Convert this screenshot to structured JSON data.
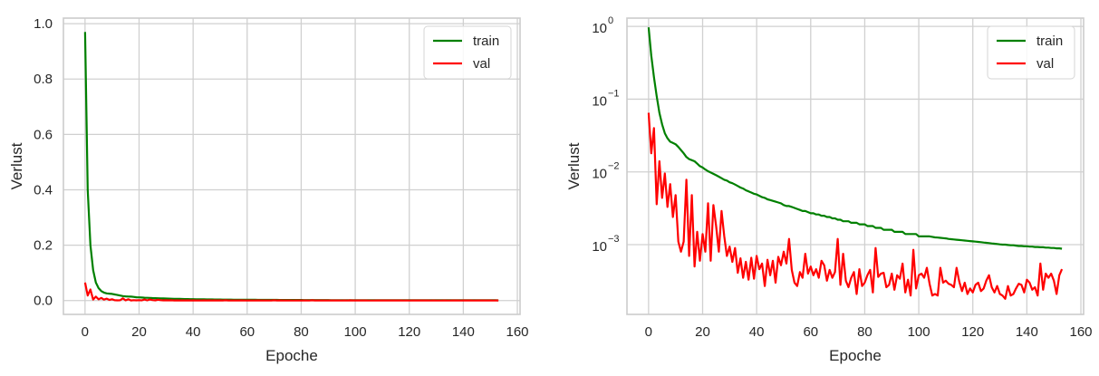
{
  "figure": {
    "panels": [
      "linear",
      "log"
    ]
  },
  "colors": {
    "train": "#008000",
    "val": "#ff0000",
    "grid": "#d0d0d0",
    "frame": "#cccccc",
    "text": "#262626"
  },
  "chart_data": [
    {
      "type": "line",
      "title": "",
      "xlabel": "Epoche",
      "ylabel": "Verlust",
      "yscale": "linear",
      "xlim": [
        -8,
        161
      ],
      "ylim": [
        -0.05,
        1.02
      ],
      "xticks": [
        0,
        20,
        40,
        60,
        80,
        100,
        120,
        140,
        160
      ],
      "xtick_labels": [
        "0",
        "20",
        "40",
        "60",
        "80",
        "100",
        "120",
        "140",
        "160"
      ],
      "yticks": [
        0.0,
        0.2,
        0.4,
        0.6,
        0.8,
        1.0
      ],
      "ytick_labels": [
        "0.0",
        "0.2",
        "0.4",
        "0.6",
        "0.8",
        "1.0"
      ],
      "grid": true,
      "legend": {
        "position": "upper right",
        "entries": [
          "train",
          "val"
        ]
      },
      "series": [
        {
          "name": "train",
          "color": "#008000",
          "ref": "train"
        },
        {
          "name": "val",
          "color": "#ff0000",
          "ref": "val"
        }
      ]
    },
    {
      "type": "line",
      "title": "",
      "xlabel": "Epoche",
      "ylabel": "Verlust",
      "yscale": "log",
      "xlim": [
        -8,
        161
      ],
      "ylim": [
        0.00011,
        1.3
      ],
      "xticks": [
        0,
        20,
        40,
        60,
        80,
        100,
        120,
        140,
        160
      ],
      "xtick_labels": [
        "0",
        "20",
        "40",
        "60",
        "80",
        "100",
        "120",
        "140",
        "160"
      ],
      "yticks": [
        1,
        0.1,
        0.01,
        0.001
      ],
      "ytick_labels": [
        "10",
        "10",
        "10",
        "10"
      ],
      "ytick_exponents": [
        "0",
        "−1",
        "−2",
        "−3"
      ],
      "grid": true,
      "legend": {
        "position": "upper right",
        "entries": [
          "train",
          "val"
        ]
      },
      "series": [
        {
          "name": "train",
          "color": "#008000",
          "ref": "train"
        },
        {
          "name": "val",
          "color": "#ff0000",
          "ref": "val"
        }
      ]
    }
  ],
  "series_values": {
    "epochs": [
      0,
      1,
      2,
      3,
      4,
      5,
      6,
      7,
      8,
      9,
      10,
      11,
      12,
      13,
      14,
      15,
      16,
      17,
      18,
      19,
      20,
      21,
      22,
      23,
      24,
      25,
      26,
      27,
      28,
      29,
      30,
      31,
      32,
      33,
      34,
      35,
      36,
      37,
      38,
      39,
      40,
      41,
      42,
      43,
      44,
      45,
      46,
      47,
      48,
      49,
      50,
      51,
      52,
      53,
      54,
      55,
      56,
      57,
      58,
      59,
      60,
      61,
      62,
      63,
      64,
      65,
      66,
      67,
      68,
      69,
      70,
      71,
      72,
      73,
      74,
      75,
      76,
      77,
      78,
      79,
      80,
      81,
      82,
      83,
      84,
      85,
      86,
      87,
      88,
      89,
      90,
      91,
      92,
      93,
      94,
      95,
      96,
      97,
      98,
      99,
      100,
      101,
      102,
      103,
      104,
      105,
      106,
      107,
      108,
      109,
      110,
      111,
      112,
      113,
      114,
      115,
      116,
      117,
      118,
      119,
      120,
      121,
      122,
      123,
      124,
      125,
      126,
      127,
      128,
      129,
      130,
      131,
      132,
      133,
      134,
      135,
      136,
      137,
      138,
      139,
      140,
      141,
      142,
      143,
      144,
      145,
      146,
      147,
      148,
      149,
      150,
      151,
      152,
      153
    ],
    "train": [
      0.97,
      0.4,
      0.2,
      0.11,
      0.065,
      0.045,
      0.034,
      0.029,
      0.026,
      0.025,
      0.024,
      0.022,
      0.02,
      0.018,
      0.016,
      0.015,
      0.0145,
      0.014,
      0.013,
      0.012,
      0.0115,
      0.0108,
      0.0102,
      0.0098,
      0.0094,
      0.009,
      0.0086,
      0.0082,
      0.0078,
      0.0076,
      0.0072,
      0.007,
      0.0067,
      0.0064,
      0.0061,
      0.0059,
      0.0056,
      0.0054,
      0.0052,
      0.005,
      0.0049,
      0.0047,
      0.0045,
      0.0044,
      0.0042,
      0.0041,
      0.004,
      0.0039,
      0.0038,
      0.0037,
      0.0035,
      0.0034,
      0.0034,
      0.0033,
      0.0032,
      0.0031,
      0.003,
      0.0029,
      0.0029,
      0.0028,
      0.0027,
      0.0027,
      0.0026,
      0.0026,
      0.0025,
      0.0025,
      0.0024,
      0.0024,
      0.0023,
      0.0023,
      0.0022,
      0.0022,
      0.0021,
      0.0021,
      0.0021,
      0.002,
      0.002,
      0.002,
      0.0019,
      0.0019,
      0.0019,
      0.0018,
      0.0018,
      0.0018,
      0.0017,
      0.0017,
      0.0017,
      0.0016,
      0.0016,
      0.0016,
      0.0016,
      0.0015,
      0.0015,
      0.0015,
      0.0015,
      0.0014,
      0.0014,
      0.0014,
      0.0014,
      0.0014,
      0.0013,
      0.0013,
      0.0013,
      0.0013,
      0.0013,
      0.00128,
      0.00126,
      0.00125,
      0.00124,
      0.00123,
      0.00122,
      0.0012,
      0.00119,
      0.00118,
      0.00117,
      0.00116,
      0.00115,
      0.00114,
      0.00113,
      0.00112,
      0.00111,
      0.0011,
      0.00109,
      0.00108,
      0.00107,
      0.00106,
      0.00105,
      0.00104,
      0.00103,
      0.00102,
      0.00101,
      0.001,
      0.001,
      0.00099,
      0.00098,
      0.00098,
      0.00097,
      0.00096,
      0.00096,
      0.00095,
      0.00095,
      0.00094,
      0.00094,
      0.00093,
      0.00093,
      0.00092,
      0.00092,
      0.00091,
      0.00091,
      0.0009,
      0.0009,
      0.00089,
      0.00089,
      0.00088
    ],
    "val": [
      0.065,
      0.018,
      0.04,
      0.0036,
      0.014,
      0.0044,
      0.0095,
      0.0033,
      0.0068,
      0.0024,
      0.0048,
      0.0011,
      0.0008,
      0.0011,
      0.0078,
      0.0007,
      0.0048,
      0.0005,
      0.0015,
      0.0006,
      0.0014,
      0.0008,
      0.0037,
      0.0006,
      0.0035,
      0.0018,
      0.0008,
      0.0029,
      0.0013,
      0.0007,
      0.00094,
      0.00058,
      0.0009,
      0.00041,
      0.00065,
      0.00035,
      0.00058,
      0.00033,
      0.00066,
      0.00034,
      0.0007,
      0.00046,
      0.00055,
      0.00027,
      0.00062,
      0.00038,
      0.0006,
      0.0003,
      0.00068,
      0.00052,
      0.0008,
      0.00055,
      0.0012,
      0.00045,
      0.0003,
      0.00027,
      0.00042,
      0.00035,
      0.00075,
      0.0004,
      0.0005,
      0.00038,
      0.00046,
      0.00035,
      0.0006,
      0.00052,
      0.00032,
      0.00045,
      0.00035,
      0.00042,
      0.0012,
      0.00028,
      0.00075,
      0.00032,
      0.00026,
      0.00035,
      0.00042,
      0.00021,
      0.00046,
      0.00027,
      0.0003,
      0.00038,
      0.00045,
      0.00022,
      0.0009,
      0.00036,
      0.0004,
      0.00041,
      0.00026,
      0.00028,
      0.0004,
      0.00024,
      0.00038,
      0.00034,
      0.00055,
      0.00022,
      0.00033,
      0.0002,
      0.00085,
      0.00025,
      0.00038,
      0.0004,
      0.00035,
      0.00048,
      0.00029,
      0.0002,
      0.00021,
      0.0002,
      0.00048,
      0.0003,
      0.00032,
      0.00029,
      0.00028,
      0.00026,
      0.00048,
      0.00031,
      0.00023,
      0.0003,
      0.00021,
      0.00025,
      0.00022,
      0.00028,
      0.0003,
      0.00023,
      0.00025,
      0.00032,
      0.00038,
      0.00026,
      0.00022,
      0.00027,
      0.00021,
      0.0002,
      0.00018,
      0.00027,
      0.0002,
      0.00021,
      0.00025,
      0.00029,
      0.00028,
      0.00022,
      0.00033,
      0.0003,
      0.00024,
      0.00026,
      0.0002,
      0.00055,
      0.00024,
      0.0004,
      0.00035,
      0.0004,
      0.00032,
      0.00021,
      0.00038,
      0.00046
    ]
  }
}
